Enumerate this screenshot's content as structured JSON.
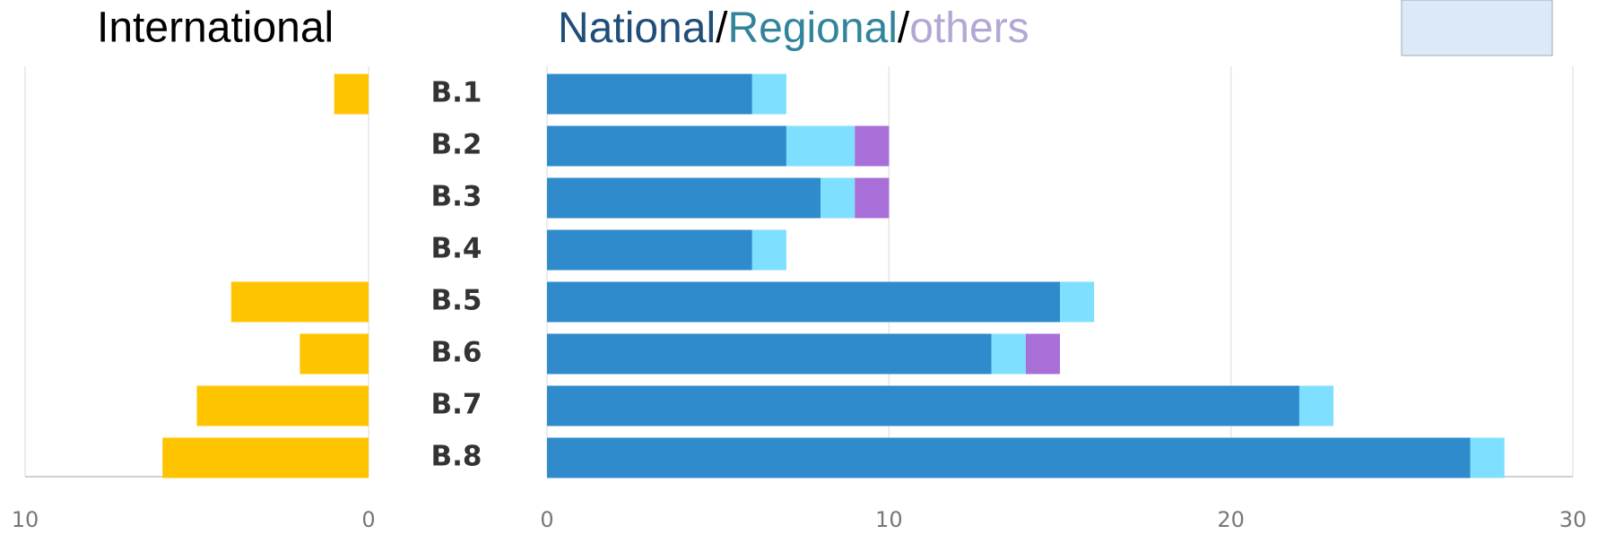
{
  "chart_data": [
    {
      "type": "hbar",
      "title": "International",
      "color": "#FFC400",
      "values": [
        1,
        0,
        0,
        0,
        4,
        2,
        5,
        6
      ],
      "xlim": [
        10,
        0
      ],
      "xticks": [
        10,
        0
      ],
      "grid": true
    },
    {
      "type": "stacked-hbar",
      "title_separator": "/",
      "categories": [
        "B.1",
        "B.2",
        "B.3",
        "B.4",
        "B.5",
        "B.6",
        "B.7",
        "B.8"
      ],
      "series": [
        {
          "name": "National",
          "color": "#2F8BCC",
          "title_color": "#1F4E79",
          "values": [
            6,
            7,
            8,
            6,
            15,
            13,
            22,
            27
          ]
        },
        {
          "name": "Regional",
          "color": "#7FDFFF",
          "title_color": "#31849B",
          "values": [
            1,
            2,
            1,
            1,
            1,
            1,
            1,
            1
          ]
        },
        {
          "name": "others",
          "color": "#A86FD9",
          "title_color": "#B4A7D6",
          "values": [
            0,
            1,
            1,
            0,
            0,
            1,
            0,
            0
          ]
        }
      ],
      "xlim": [
        0,
        30
      ],
      "xticks": [
        0,
        10,
        20,
        30
      ],
      "grid": true
    }
  ]
}
